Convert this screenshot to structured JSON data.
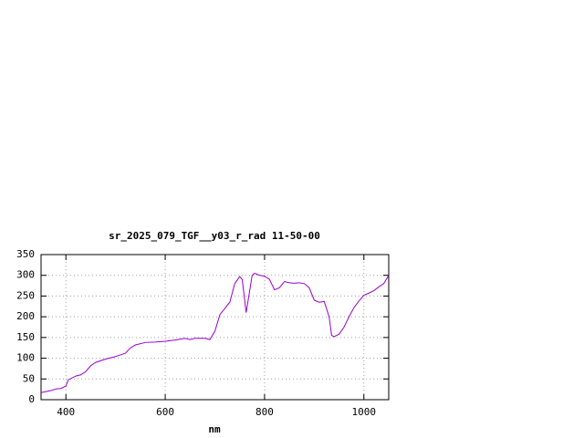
{
  "chart_data": {
    "type": "line",
    "title": "sr_2025_079_TGF__y03_r_rad 11-50-00",
    "x_label": "nm",
    "x": [
      350,
      370,
      380,
      390,
      400,
      405,
      420,
      430,
      440,
      450,
      460,
      480,
      500,
      520,
      530,
      540,
      560,
      580,
      600,
      620,
      640,
      650,
      660,
      680,
      690,
      700,
      710,
      720,
      730,
      740,
      750,
      755,
      760,
      763,
      767,
      775,
      780,
      790,
      800,
      810,
      820,
      830,
      840,
      850,
      860,
      870,
      880,
      890,
      900,
      910,
      920,
      930,
      935,
      940,
      950,
      960,
      970,
      980,
      990,
      1000,
      1010,
      1020,
      1030,
      1040,
      1050
    ],
    "series": [
      {
        "color": "#9400d3",
        "values": [
          17,
          22,
          26,
          27,
          33,
          48,
          57,
          60,
          68,
          82,
          90,
          98,
          104,
          112,
          125,
          132,
          138,
          139,
          141,
          144,
          148,
          145,
          148,
          148,
          145,
          165,
          205,
          220,
          235,
          280,
          297,
          290,
          240,
          210,
          240,
          300,
          305,
          300,
          298,
          290,
          265,
          270,
          285,
          282,
          281,
          282,
          280,
          270,
          240,
          235,
          237,
          200,
          155,
          152,
          158,
          175,
          200,
          222,
          238,
          252,
          257,
          263,
          272,
          280,
          300
        ]
      }
    ],
    "xlim": [
      350,
      1050
    ],
    "ylim": [
      0,
      350
    ],
    "xticks": [
      400,
      600,
      800,
      1000
    ],
    "yticks": [
      0,
      50,
      100,
      150,
      200,
      250,
      300,
      350
    ],
    "grid": true
  }
}
